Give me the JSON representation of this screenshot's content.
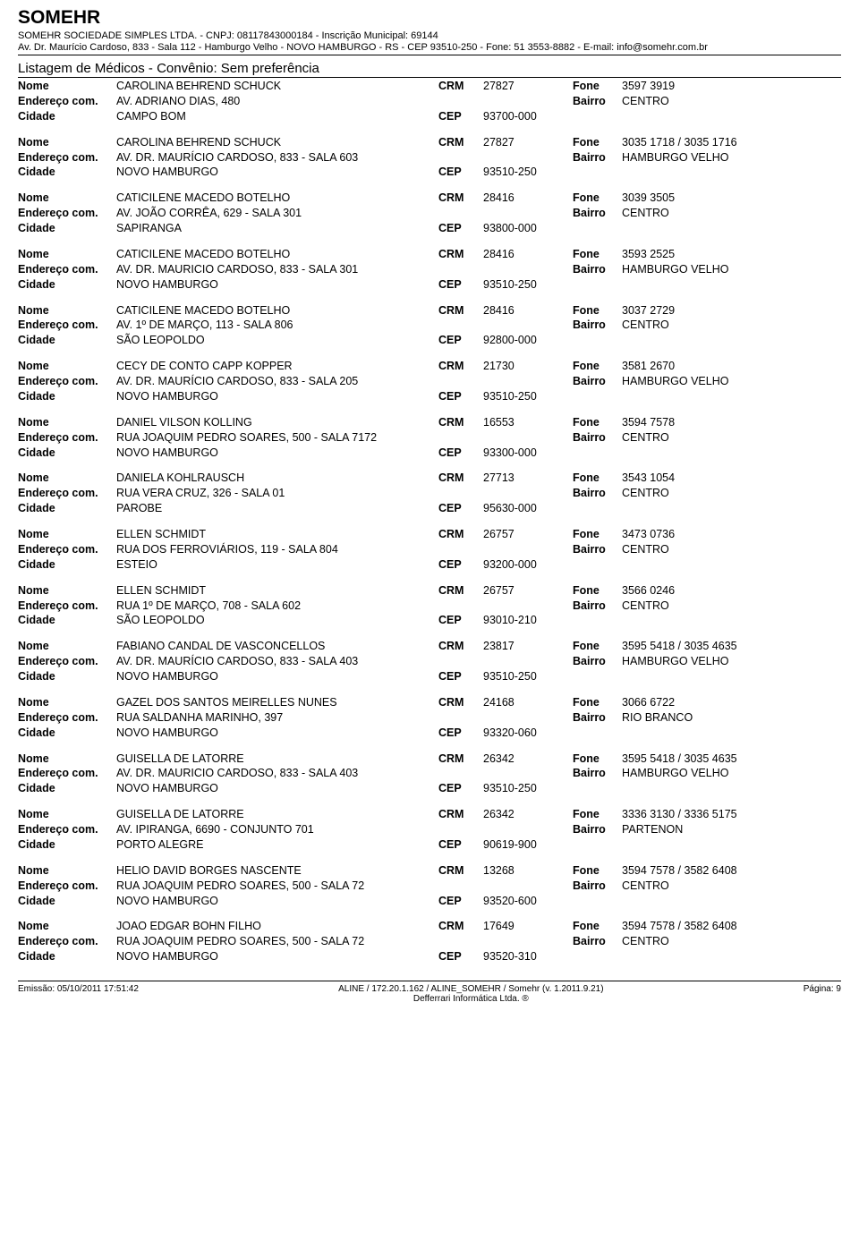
{
  "header": {
    "title": "SOMEHR",
    "subtitle": "SOMEHR SOCIEDADE SIMPLES LTDA.   -   CNPJ: 08117843000184   -   Inscrição Municipal: 69144",
    "address": "Av. Dr. Maurício Cardoso, 833 - Sala 112   -   Hamburgo Velho   -   NOVO HAMBURGO   -   RS   -   CEP 93510-250   -   Fone: 51 3553-8882   -   E-mail: info@somehr.com.br",
    "list_title": "Listagem de Médicos - Convênio: Sem preferência"
  },
  "labels": {
    "nome": "Nome",
    "endereco": "Endereço com.",
    "cidade": "Cidade",
    "crm": "CRM",
    "cep": "CEP",
    "fone": "Fone",
    "bairro": "Bairro"
  },
  "records": [
    {
      "nome": "CAROLINA BEHREND SCHUCK",
      "crm": "27827",
      "fone": "3597 3919",
      "endereco": "AV. ADRIANO DIAS, 480",
      "bairro": "CENTRO",
      "cidade": "CAMPO BOM",
      "cep": "93700-000"
    },
    {
      "nome": "CAROLINA BEHREND SCHUCK",
      "crm": "27827",
      "fone": "3035 1718 / 3035 1716",
      "endereco": "AV. DR. MAURÍCIO CARDOSO, 833 - SALA 603",
      "bairro": "HAMBURGO VELHO",
      "cidade": "NOVO HAMBURGO",
      "cep": "93510-250"
    },
    {
      "nome": "CATICILENE MACEDO BOTELHO",
      "crm": "28416",
      "fone": "3039 3505",
      "endereco": "AV. JOÃO CORRÊA, 629 - SALA 301",
      "bairro": "CENTRO",
      "cidade": "SAPIRANGA",
      "cep": "93800-000"
    },
    {
      "nome": "CATICILENE MACEDO BOTELHO",
      "crm": "28416",
      "fone": "3593 2525",
      "endereco": "AV. DR. MAURICIO CARDOSO, 833 - SALA 301",
      "bairro": "HAMBURGO VELHO",
      "cidade": "NOVO HAMBURGO",
      "cep": "93510-250"
    },
    {
      "nome": "CATICILENE MACEDO BOTELHO",
      "crm": "28416",
      "fone": "3037 2729",
      "endereco": "AV. 1º DE MARÇO, 113 - SALA 806",
      "bairro": "CENTRO",
      "cidade": "SÃO LEOPOLDO",
      "cep": "92800-000"
    },
    {
      "nome": "CECY DE CONTO CAPP KOPPER",
      "crm": "21730",
      "fone": "3581 2670",
      "endereco": "AV. DR. MAURÍCIO CARDOSO, 833 - SALA 205",
      "bairro": "HAMBURGO VELHO",
      "cidade": "NOVO HAMBURGO",
      "cep": "93510-250"
    },
    {
      "nome": "DANIEL VILSON KOLLING",
      "crm": "16553",
      "fone": "3594 7578",
      "endereco": "RUA JOAQUIM PEDRO SOARES, 500 - SALA 7172",
      "bairro": "CENTRO",
      "cidade": "NOVO HAMBURGO",
      "cep": "93300-000"
    },
    {
      "nome": "DANIELA KOHLRAUSCH",
      "crm": "27713",
      "fone": "3543 1054",
      "endereco": "RUA VERA CRUZ, 326 - SALA 01",
      "bairro": "CENTRO",
      "cidade": "PAROBE",
      "cep": "95630-000"
    },
    {
      "nome": "ELLEN SCHMIDT",
      "crm": "26757",
      "fone": "3473 0736",
      "endereco": "RUA DOS FERROVIÁRIOS, 119 - SALA 804",
      "bairro": "CENTRO",
      "cidade": "ESTEIO",
      "cep": "93200-000"
    },
    {
      "nome": "ELLEN SCHMIDT",
      "crm": "26757",
      "fone": "3566 0246",
      "endereco": "RUA 1º DE MARÇO, 708 - SALA 602",
      "bairro": "CENTRO",
      "cidade": "SÃO LEOPOLDO",
      "cep": "93010-210"
    },
    {
      "nome": "FABIANO CANDAL DE VASCONCELLOS",
      "crm": "23817",
      "fone": "3595 5418 / 3035 4635",
      "endereco": "AV. DR. MAURÍCIO CARDOSO, 833 - SALA 403",
      "bairro": "HAMBURGO VELHO",
      "cidade": "NOVO HAMBURGO",
      "cep": "93510-250"
    },
    {
      "nome": "GAZEL DOS SANTOS MEIRELLES NUNES",
      "crm": "24168",
      "fone": "3066 6722",
      "endereco": "RUA SALDANHA MARINHO, 397",
      "bairro": "RIO BRANCO",
      "cidade": "NOVO HAMBURGO",
      "cep": "93320-060"
    },
    {
      "nome": "GUISELLA DE LATORRE",
      "crm": "26342",
      "fone": "3595 5418 / 3035 4635",
      "endereco": "AV. DR. MAURICIO CARDOSO, 833 - SALA 403",
      "bairro": "HAMBURGO VELHO",
      "cidade": "NOVO HAMBURGO",
      "cep": "93510-250"
    },
    {
      "nome": "GUISELLA DE LATORRE",
      "crm": "26342",
      "fone": "3336 3130 / 3336 5175",
      "endereco": "AV. IPIRANGA, 6690 - CONJUNTO 701",
      "bairro": "PARTENON",
      "cidade": "PORTO ALEGRE",
      "cep": "90619-900"
    },
    {
      "nome": "HELIO DAVID BORGES NASCENTE",
      "crm": "13268",
      "fone": "3594 7578 / 3582 6408",
      "endereco": "RUA JOAQUIM PEDRO SOARES, 500 - SALA 72",
      "bairro": "CENTRO",
      "cidade": "NOVO HAMBURGO",
      "cep": "93520-600"
    },
    {
      "nome": "JOAO EDGAR BOHN FILHO",
      "crm": "17649",
      "fone": "3594 7578 / 3582 6408",
      "endereco": "RUA JOAQUIM PEDRO SOARES, 500 - SALA 72",
      "bairro": "CENTRO",
      "cidade": "NOVO HAMBURGO",
      "cep": "93520-310"
    }
  ],
  "footer": {
    "left": "Emissão: 05/10/2011 17:51:42",
    "center1": "ALINE / 172.20.1.162 / ALINE_SOMEHR / Somehr (v. 1.2011.9.21)",
    "center2": "Defferrari Informática Ltda. ®",
    "right": "Página: 9"
  }
}
